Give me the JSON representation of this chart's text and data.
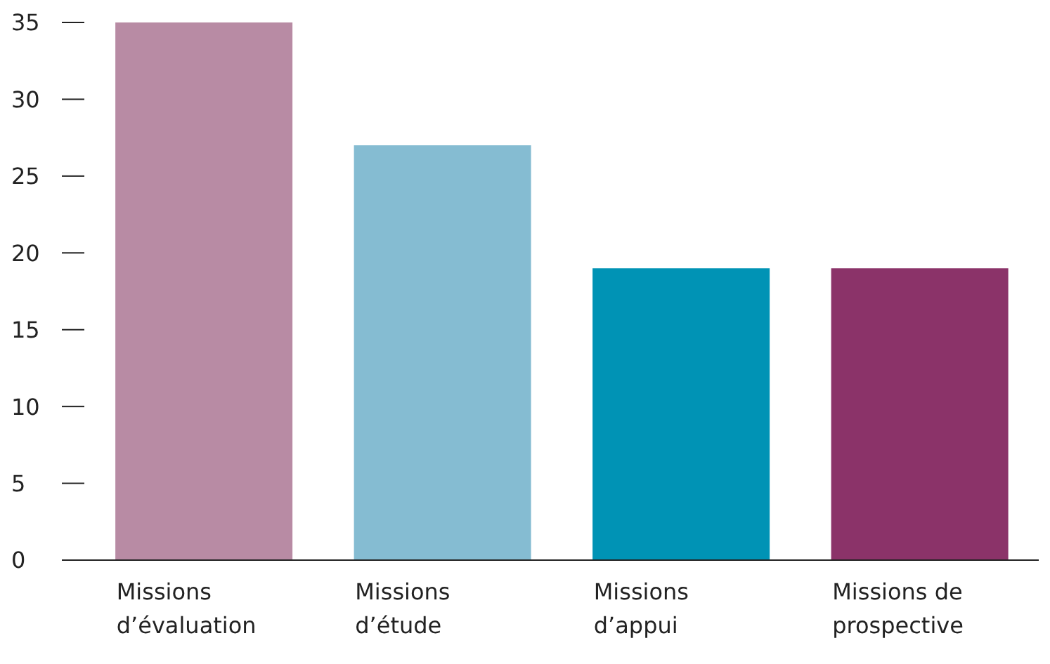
{
  "chart_data": {
    "type": "bar",
    "categories": [
      "Missions d’évaluation",
      "Missions d’étude",
      "Missions d’appui",
      "Missions de prospective"
    ],
    "values": [
      35,
      27,
      19,
      19
    ],
    "colors": [
      "#b88ba4",
      "#85bcd2",
      "#0093b5",
      "#8b3369"
    ],
    "ylim": [
      0,
      35
    ],
    "yticks": [
      0,
      5,
      10,
      15,
      20,
      25,
      30,
      35
    ],
    "grid": false,
    "legend": false
  }
}
